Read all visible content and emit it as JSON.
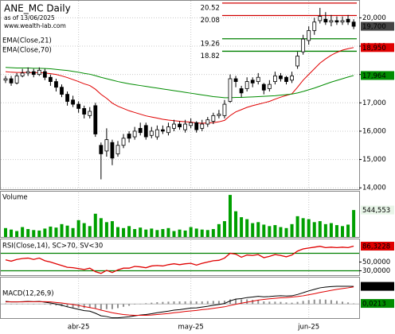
{
  "chart_data": [
    {
      "type": "candlestick",
      "title": "ANE_MC Daily",
      "subtitle": "as of 13/06/2025",
      "annotation": "www.wealth-lab.com",
      "categories": [
        null,
        null,
        null,
        null,
        null,
        null,
        null,
        null,
        null,
        null,
        null,
        null,
        null,
        "abr-25",
        null,
        null,
        null,
        null,
        null,
        null,
        null,
        null,
        null,
        null,
        null,
        null,
        null,
        null,
        null,
        null,
        null,
        null,
        null,
        "may-25",
        null,
        null,
        null,
        null,
        null,
        null,
        null,
        null,
        null,
        null,
        null,
        null,
        null,
        null,
        null,
        null,
        null,
        null,
        null,
        null,
        "jun-25",
        null,
        null,
        null,
        null,
        null,
        null,
        null,
        null
      ],
      "open": [
        17800,
        17850,
        17700,
        17950,
        18050,
        18100,
        18000,
        18100,
        17900,
        17750,
        17550,
        17300,
        17100,
        16950,
        16800,
        16550,
        16900,
        15500,
        15300,
        15600,
        15200,
        15500,
        15900,
        15800,
        16100,
        16200,
        15850,
        15800,
        16050,
        15950,
        16100,
        16250,
        16050,
        16200,
        16300,
        16100,
        16250,
        16350,
        16550,
        16550,
        17050,
        17850,
        17500,
        17500,
        17800,
        17750,
        17650,
        17500,
        17750,
        17950,
        17900,
        17800,
        18300,
        18800,
        19200,
        19550,
        19900,
        19950,
        19850,
        19900,
        19850,
        19950,
        19850
      ],
      "high": [
        17950,
        17950,
        18050,
        18200,
        18250,
        18200,
        18250,
        18200,
        18000,
        17850,
        17650,
        17400,
        17250,
        17050,
        16900,
        16850,
        17000,
        15600,
        16100,
        15700,
        15650,
        15900,
        16000,
        16150,
        16300,
        16300,
        16150,
        16200,
        16200,
        16300,
        16400,
        16350,
        16400,
        16450,
        16350,
        16400,
        16500,
        16650,
        16750,
        17100,
        18000,
        17950,
        17600,
        17900,
        17900,
        18050,
        17700,
        17800,
        18100,
        18050,
        17950,
        18100,
        18800,
        19400,
        19700,
        20000,
        20350,
        20200,
        20100,
        20050,
        20050,
        20100,
        19950
      ],
      "low": [
        17700,
        17600,
        17650,
        17900,
        17950,
        17900,
        17950,
        17800,
        17600,
        17400,
        17200,
        16900,
        16850,
        16650,
        16450,
        16450,
        15800,
        14300,
        15100,
        14800,
        15100,
        15400,
        15600,
        15700,
        15850,
        15700,
        15750,
        15700,
        15900,
        15850,
        16000,
        16050,
        15950,
        16100,
        15950,
        16000,
        16150,
        16250,
        16450,
        16450,
        17000,
        17550,
        17200,
        17400,
        17550,
        17650,
        17300,
        17400,
        17650,
        17750,
        17650,
        17700,
        18200,
        18700,
        19050,
        19400,
        19800,
        19750,
        19700,
        19750,
        19750,
        19750,
        19600
      ],
      "close": [
        17850,
        17700,
        17950,
        18050,
        18100,
        18000,
        18150,
        17900,
        17750,
        17550,
        17300,
        17050,
        16950,
        16800,
        16600,
        16700,
        15900,
        15200,
        15700,
        15050,
        15500,
        15750,
        15750,
        16000,
        15950,
        15800,
        16000,
        16050,
        16000,
        16150,
        16250,
        16150,
        16250,
        16300,
        16050,
        16250,
        16400,
        16550,
        16600,
        16950,
        17850,
        17750,
        17350,
        17750,
        17700,
        17900,
        17450,
        17650,
        17950,
        17850,
        17750,
        17950,
        18650,
        19250,
        19550,
        19850,
        20050,
        19850,
        19900,
        19850,
        19900,
        19850,
        19700
      ],
      "close_label": "19,700",
      "series": [
        {
          "name": "EMA(Close,21)",
          "color": "#e00000",
          "last_label": "18,950",
          "values": [
            18100,
            18080,
            18070,
            18070,
            18070,
            18060,
            18070,
            18050,
            18030,
            18000,
            17950,
            17890,
            17820,
            17750,
            17670,
            17610,
            17480,
            17300,
            17160,
            16990,
            16880,
            16800,
            16720,
            16660,
            16600,
            16540,
            16500,
            16460,
            16420,
            16390,
            16370,
            16350,
            16330,
            16320,
            16290,
            16280,
            16290,
            16300,
            16330,
            16380,
            16550,
            16680,
            16760,
            16840,
            16900,
            16950,
            17000,
            17050,
            17130,
            17200,
            17260,
            17320,
            17550,
            17800,
            18000,
            18200,
            18400,
            18550,
            18680,
            18780,
            18860,
            18910,
            18950
          ]
        },
        {
          "name": "EMA(Close,70)",
          "color": "#008c00",
          "last_label": "17,964",
          "values": [
            18250,
            18240,
            18230,
            18230,
            18230,
            18220,
            18220,
            18210,
            18200,
            18180,
            18160,
            18140,
            18110,
            18080,
            18040,
            18010,
            17960,
            17900,
            17850,
            17800,
            17750,
            17710,
            17670,
            17640,
            17610,
            17580,
            17550,
            17520,
            17490,
            17460,
            17430,
            17400,
            17370,
            17340,
            17310,
            17280,
            17250,
            17220,
            17200,
            17180,
            17180,
            17190,
            17190,
            17200,
            17210,
            17220,
            17230,
            17240,
            17250,
            17270,
            17290,
            17310,
            17350,
            17400,
            17460,
            17520,
            17590,
            17660,
            17730,
            17790,
            17850,
            17910,
            17964
          ]
        }
      ],
      "levels": [
        {
          "value": 20520,
          "label": "20.52",
          "color": "#d00000"
        },
        {
          "value": 20080,
          "label": "20.08",
          "color": "#d00000"
        },
        {
          "value": 19260,
          "label": "19.26",
          "color": "#008000"
        },
        {
          "value": 18820,
          "label": "18.82",
          "color": "#008000"
        }
      ],
      "ylim": [
        13950,
        20600
      ],
      "yticks": [
        {
          "value": 14000,
          "label": "14,000"
        },
        {
          "value": 15000,
          "label": "15,000"
        },
        {
          "value": 16000,
          "label": "16,000"
        },
        {
          "value": 17000,
          "label": "17,000"
        },
        {
          "value": 18000,
          "label": "18,000"
        },
        {
          "value": 19000,
          "label": "19,000"
        },
        {
          "value": 20000,
          "label": "20,000"
        }
      ],
      "grid": true
    },
    {
      "type": "bar",
      "title": "Volume",
      "color": "#00a000",
      "last_label": "544,553",
      "values": [
        180000,
        150000,
        120000,
        200000,
        160000,
        140000,
        130000,
        170000,
        210000,
        190000,
        260000,
        230000,
        180000,
        340000,
        280000,
        220000,
        470000,
        380000,
        300000,
        320000,
        200000,
        180000,
        220000,
        160000,
        190000,
        150000,
        170000,
        140000,
        160000,
        180000,
        120000,
        150000,
        130000,
        200000,
        170000,
        150000,
        140000,
        160000,
        260000,
        320000,
        850000,
        520000,
        400000,
        360000,
        280000,
        300000,
        250000,
        220000,
        240000,
        200000,
        180000,
        260000,
        420000,
        380000,
        360000,
        300000,
        320000,
        260000,
        280000,
        240000,
        220000,
        250000,
        544553
      ],
      "ylim": [
        0,
        900000
      ]
    },
    {
      "type": "line",
      "title": "RSI(Close,14), SC>70, SV<30",
      "color": "#e00000",
      "last_label": "86,3228",
      "values": [
        55,
        52,
        56,
        58,
        59,
        56,
        59,
        53,
        50,
        46,
        42,
        38,
        37,
        35,
        33,
        36,
        28,
        24,
        31,
        26,
        32,
        36,
        36,
        40,
        39,
        37,
        41,
        42,
        41,
        44,
        46,
        44,
        46,
        47,
        43,
        47,
        50,
        53,
        54,
        59,
        70,
        68,
        61,
        66,
        65,
        67,
        60,
        63,
        67,
        65,
        62,
        66,
        75,
        80,
        82,
        84,
        86,
        83,
        84,
        83,
        84,
        83,
        86.3228
      ],
      "levels": [
        {
          "value": 70,
          "color": "#008000"
        },
        {
          "value": 30,
          "color": "#008000"
        }
      ],
      "ylim": [
        20,
        100
      ],
      "yticks": [
        {
          "value": 50,
          "label": "50,0000"
        },
        {
          "value": 30,
          "label": "30,0000"
        }
      ]
    },
    {
      "type": "line",
      "title": "MACD(12,26,9)",
      "series": [
        {
          "color": "#000000",
          "last_label": "0,6867",
          "values": [
            0.1,
            0.08,
            0.08,
            0.09,
            0.1,
            0.09,
            0.1,
            0.07,
            0.04,
            0.0,
            -0.05,
            -0.11,
            -0.16,
            -0.21,
            -0.26,
            -0.28,
            -0.36,
            -0.46,
            -0.49,
            -0.54,
            -0.54,
            -0.52,
            -0.5,
            -0.46,
            -0.43,
            -0.41,
            -0.38,
            -0.34,
            -0.31,
            -0.28,
            -0.24,
            -0.22,
            -0.19,
            -0.16,
            -0.15,
            -0.12,
            -0.09,
            -0.05,
            -0.02,
            0.02,
            0.12,
            0.19,
            0.21,
            0.25,
            0.27,
            0.3,
            0.28,
            0.29,
            0.31,
            0.32,
            0.31,
            0.32,
            0.37,
            0.44,
            0.51,
            0.57,
            0.63,
            0.66,
            0.68,
            0.69,
            0.69,
            0.69,
            0.6867
          ]
        },
        {
          "color": "#e00000",
          "values": [
            0.08,
            0.08,
            0.08,
            0.08,
            0.09,
            0.09,
            0.09,
            0.09,
            0.08,
            0.06,
            0.04,
            0.01,
            -0.02,
            -0.06,
            -0.1,
            -0.14,
            -0.18,
            -0.24,
            -0.29,
            -0.34,
            -0.38,
            -0.41,
            -0.43,
            -0.44,
            -0.44,
            -0.44,
            -0.43,
            -0.41,
            -0.39,
            -0.37,
            -0.34,
            -0.32,
            -0.29,
            -0.27,
            -0.25,
            -0.22,
            -0.2,
            -0.17,
            -0.14,
            -0.11,
            -0.06,
            -0.01,
            0.03,
            0.07,
            0.11,
            0.15,
            0.18,
            0.2,
            0.22,
            0.24,
            0.25,
            0.27,
            0.29,
            0.32,
            0.36,
            0.4,
            0.45,
            0.49,
            0.53,
            0.57,
            0.6,
            0.63,
            0.6654
          ]
        }
      ],
      "histogram": {
        "color": "#909090",
        "last_label": "0,0213",
        "values": [
          0.02,
          0.0,
          0.0,
          0.01,
          0.01,
          0.0,
          0.01,
          -0.02,
          -0.04,
          -0.06,
          -0.09,
          -0.12,
          -0.14,
          -0.15,
          -0.16,
          -0.14,
          -0.18,
          -0.22,
          -0.2,
          -0.2,
          -0.16,
          -0.11,
          -0.07,
          -0.02,
          0.01,
          0.03,
          0.05,
          0.07,
          0.08,
          0.09,
          0.1,
          0.1,
          0.1,
          0.11,
          0.1,
          0.1,
          0.11,
          0.12,
          0.12,
          0.13,
          0.18,
          0.2,
          0.18,
          0.18,
          0.16,
          0.15,
          0.1,
          0.09,
          0.09,
          0.08,
          0.06,
          0.05,
          0.08,
          0.12,
          0.15,
          0.17,
          0.18,
          0.17,
          0.15,
          0.12,
          0.09,
          0.06,
          0.0213
        ]
      },
      "ylim": [
        -0.55,
        1.0
      ]
    }
  ]
}
